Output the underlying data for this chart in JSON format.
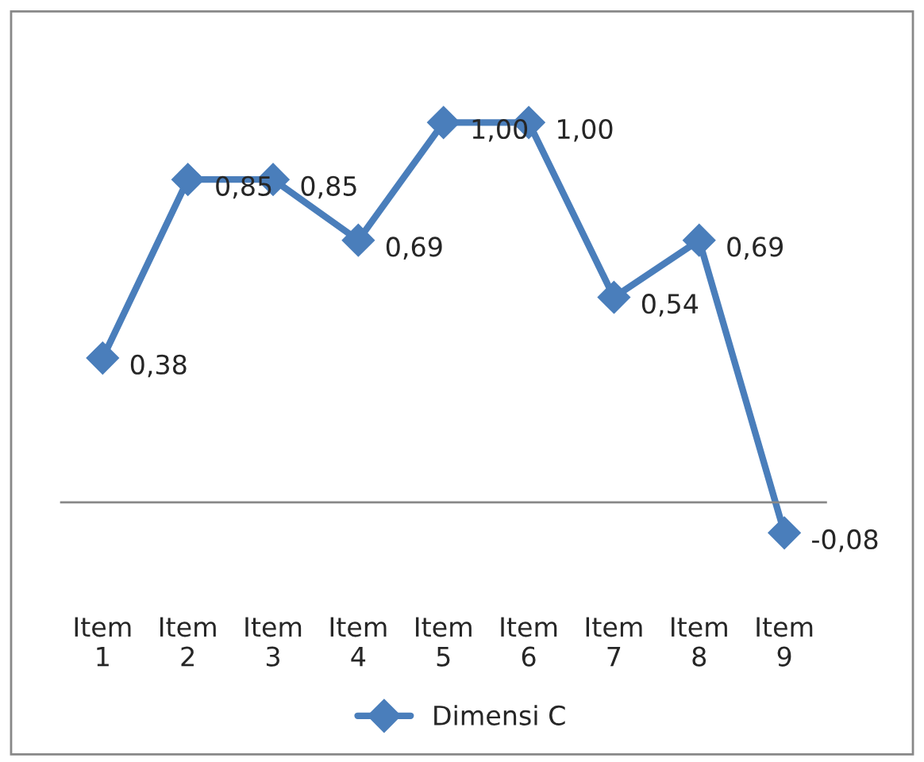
{
  "chart_data": {
    "type": "line",
    "categories": [
      "Item 1",
      "Item 2",
      "Item 3",
      "Item 4",
      "Item 5",
      "Item 6",
      "Item 7",
      "Item 8",
      "Item 9"
    ],
    "series": [
      {
        "name": "Dimensi C",
        "color": "#4a7ebb",
        "values": [
          0.38,
          0.85,
          0.85,
          0.69,
          1.0,
          1.0,
          0.54,
          0.69,
          -0.08
        ],
        "value_labels": [
          "0,38",
          "0,85",
          "0,85",
          "0,69",
          "1,00",
          "1,00",
          "0,54",
          "0,69",
          "-0,08"
        ]
      }
    ],
    "tick_labels": "x",
    "marker": "diamond",
    "line_style": "solid",
    "grid": false,
    "legend": "bottom"
  }
}
